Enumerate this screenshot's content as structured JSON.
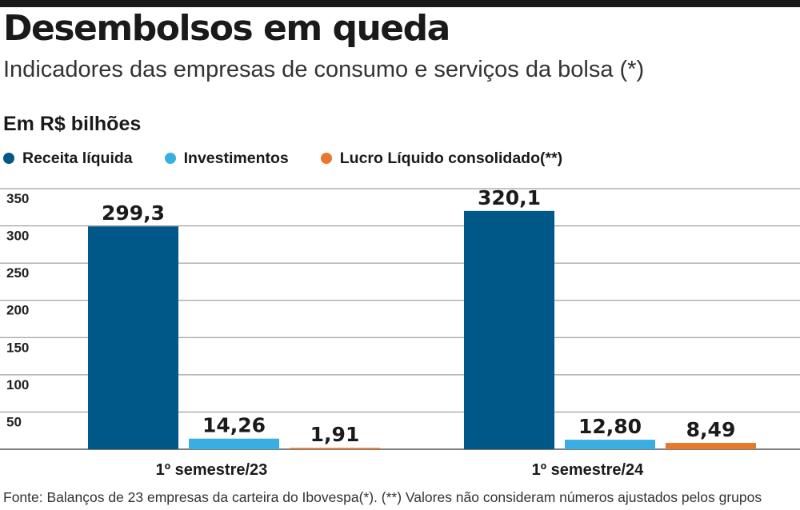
{
  "header": {
    "title": "Desembolsos em queda",
    "subtitle": "Indicadores das empresas de consumo e serviços da bolsa (*)",
    "unit": "Em R$ bilhões"
  },
  "colors": {
    "receita": "#005888",
    "investimentos": "#3aaee3",
    "lucro": "#e8782b",
    "grid": "#8a8a8a",
    "topbar": "#1a1a1a"
  },
  "chart_data": {
    "type": "bar",
    "title": "Desembolsos em queda",
    "ylabel": "Em R$ bilhões",
    "xlabel": "",
    "categories": [
      "1º semestre/23",
      "1º semestre/24"
    ],
    "series": [
      {
        "name": "Receita líquida",
        "values": [
          299.3,
          320.1
        ],
        "labels": [
          "299,3",
          "320,1"
        ]
      },
      {
        "name": "Investimentos",
        "values": [
          14.26,
          12.8
        ],
        "labels": [
          "14,26",
          "12,80"
        ]
      },
      {
        "name": "Lucro Líquido consolidado(**)",
        "values": [
          1.91,
          8.49
        ],
        "labels": [
          "1,91",
          "8,49"
        ]
      }
    ],
    "yticks": [
      50,
      100,
      150,
      200,
      250,
      300,
      350
    ],
    "ylim": [
      0,
      350
    ],
    "grid": true,
    "legend": "top-left"
  },
  "footnote": "Fonte: Balanços de 23 empresas da carteira do Ibovespa(*). (**) Valores não consideram números ajustados pelos grupos"
}
